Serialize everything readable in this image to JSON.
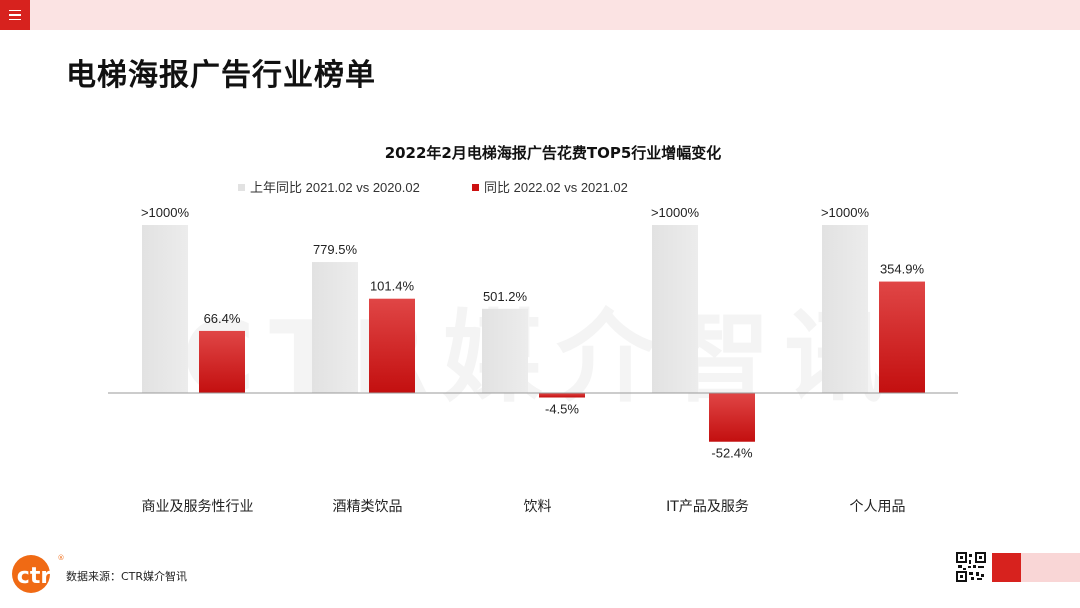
{
  "page": {
    "title": "电梯海报广告行业榜单"
  },
  "menu": {
    "icon": "menu-icon"
  },
  "chart_data": {
    "type": "bar",
    "title": "2022年2月电梯海报广告花费TOP5行业增幅变化",
    "categories": [
      "商业及服务性行业",
      "酒精类饮品",
      "饮料",
      "IT产品及服务",
      "个人用品"
    ],
    "series": [
      {
        "name": "上年同比 2021.02 vs 2020.02",
        "color": "#e6e6e6",
        "values": [
          1000,
          779.5,
          501.2,
          1000,
          1000
        ],
        "labels": [
          ">1000%",
          "779.5%",
          "501.2%",
          ">1000%",
          ">1000%"
        ]
      },
      {
        "name": "同比 2022.02 vs 2021.02",
        "color": "#cc1111",
        "values": [
          66.4,
          101.4,
          -4.5,
          -52.4,
          354.9
        ],
        "labels": [
          "66.4%",
          "101.4%",
          "-4.5%",
          "-52.4%",
          "354.9%"
        ]
      }
    ],
    "legend": "top-center",
    "grid": false,
    "watermark": "CTR媒介智讯"
  },
  "footer": {
    "source": "数据来源：CTR媒介智讯",
    "logo_text": "ctr",
    "logo_mark": "®"
  }
}
